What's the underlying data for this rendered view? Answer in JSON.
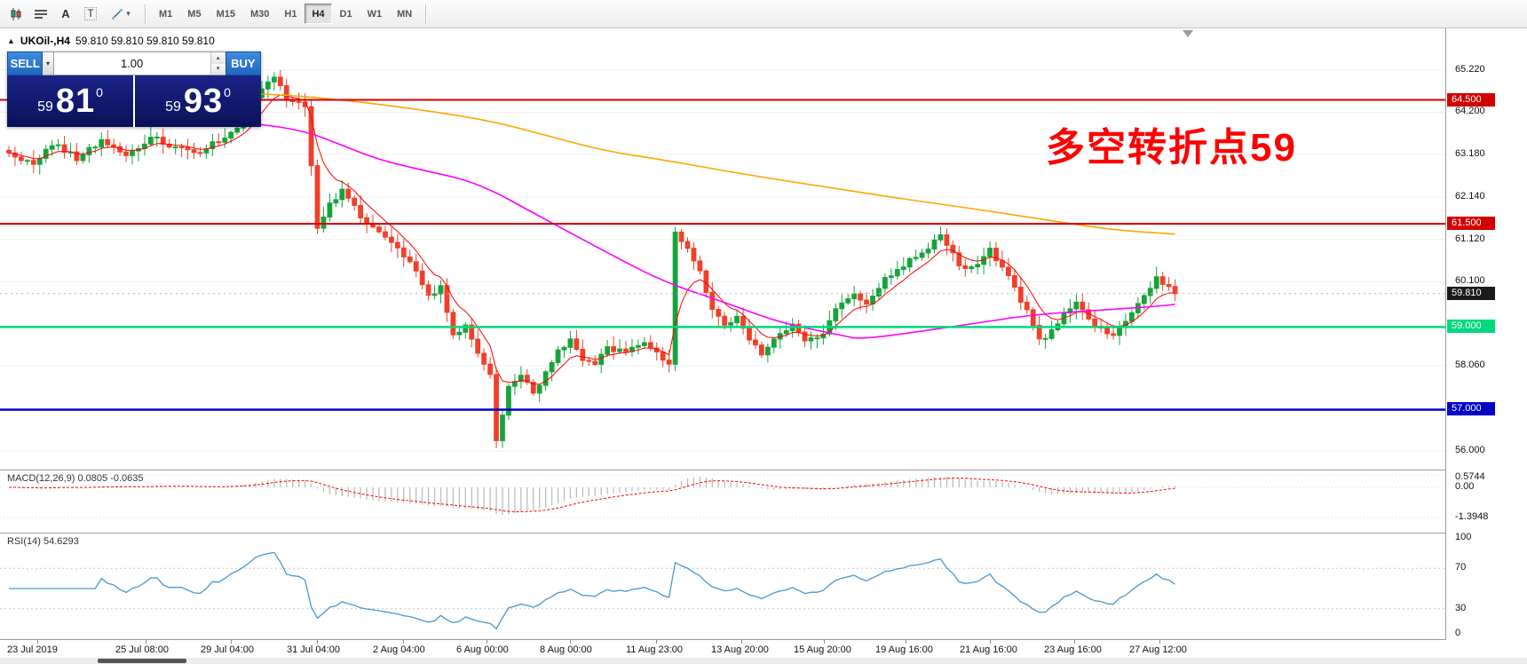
{
  "toolbar": {
    "tool_glyphs": {
      "a": "A",
      "t": "T",
      "dd": "▾"
    },
    "timeframes": [
      "M1",
      "M5",
      "M15",
      "M30",
      "H1",
      "H4",
      "D1",
      "W1",
      "MN"
    ],
    "active_timeframe": "H4"
  },
  "chart": {
    "collapse_marker": "▲",
    "title": "UKOil-,H4",
    "ohlc": "59.810 59.810 59.810 59.810",
    "annotation": {
      "text": "多空转折点59",
      "color": "#ff0000"
    },
    "price_axis": [
      {
        "text": "65.220",
        "value": 65.22
      },
      {
        "text": "64.200",
        "value": 64.2
      },
      {
        "text": "63.180",
        "value": 63.18
      },
      {
        "text": "62.140",
        "value": 62.14
      },
      {
        "text": "61.120",
        "value": 61.12
      },
      {
        "text": "60.100",
        "value": 60.1
      },
      {
        "text": "58.060",
        "value": 58.06
      },
      {
        "text": "56.000",
        "value": 56.0
      }
    ],
    "badges": [
      {
        "text": "64.500",
        "value": 64.5,
        "bg": "#d40000",
        "fg": "#ffffff"
      },
      {
        "text": "61.500",
        "value": 61.5,
        "bg": "#d40000",
        "fg": "#ffffff"
      },
      {
        "text": "59.810",
        "value": 59.81,
        "bg": "#1a1a1a",
        "fg": "#ffffff"
      },
      {
        "text": "59.000",
        "value": 59.0,
        "bg": "#00d97e",
        "fg": "#ffffff"
      },
      {
        "text": "57.000",
        "value": 57.0,
        "bg": "#0000c8",
        "fg": "#ffffff"
      }
    ],
    "macd_axis": [
      {
        "text": "0.5744",
        "value": 0.5744
      },
      {
        "text": "0.00",
        "value": 0
      },
      {
        "text": "-1.3948",
        "value": -1.3948
      }
    ],
    "rsi_axis": [
      {
        "text": "100",
        "value": 100
      },
      {
        "text": "70",
        "value": 70
      },
      {
        "text": "30",
        "value": 30
      },
      {
        "text": "0",
        "value": 0
      }
    ]
  },
  "trade_panel": {
    "sell_label": "SELL",
    "buy_label": "BUY",
    "volume": "1.00",
    "bid_small": "59",
    "bid_big": "81",
    "bid_sup": "0",
    "ask_small": "59",
    "ask_big": "93",
    "ask_sup": "0"
  },
  "macd": {
    "label": "MACD(12,26,9) 0.0805 -0.0635"
  },
  "rsi": {
    "label": "RSI(14) 54.6293"
  },
  "time_axis": [
    "23 Jul 2019",
    "25 Jul 08:00",
    "29 Jul 04:00",
    "31 Jul 04:00",
    "2 Aug 04:00",
    "6 Aug 00:00",
    "8 Aug 00:00",
    "11 Aug 23:00",
    "13 Aug 20:00",
    "15 Aug 20:00",
    "19 Aug 16:00",
    "21 Aug 16:00",
    "23 Aug 16:00",
    "27 Aug 12:00"
  ],
  "colors": {
    "bull": "#17a33c",
    "bear": "#f0402a",
    "ma_fast": "#ff0000",
    "ma_mid": "#ff00ff",
    "ma_slow": "#ffa500",
    "macd_hist": "#bdbdbd",
    "macd_signal": "#ff0000",
    "rsi_line": "#4a96d2",
    "level_red": "#d40000",
    "level_green": "#00d97e",
    "level_blue": "#0000c8"
  },
  "chart_data": {
    "type": "candlestick",
    "symbol": "UKOil-",
    "timeframe": "H4",
    "visible_range": {
      "price_min": 56.0,
      "price_max": 65.22
    },
    "n_candles": 190,
    "close_waypoints": [
      [
        0,
        63.2
      ],
      [
        4,
        62.95
      ],
      [
        7,
        63.45
      ],
      [
        11,
        63.1
      ],
      [
        15,
        63.5
      ],
      [
        19,
        63.15
      ],
      [
        23,
        63.6
      ],
      [
        27,
        63.35
      ],
      [
        31,
        63.25
      ],
      [
        35,
        63.6
      ],
      [
        38,
        63.9
      ],
      [
        41,
        64.8
      ],
      [
        43,
        65.05
      ],
      [
        45,
        64.55
      ],
      [
        48,
        64.35
      ],
      [
        50,
        61.45
      ],
      [
        52,
        61.95
      ],
      [
        54,
        62.3
      ],
      [
        57,
        61.7
      ],
      [
        60,
        61.3
      ],
      [
        63,
        60.85
      ],
      [
        66,
        60.35
      ],
      [
        68,
        59.7
      ],
      [
        70,
        59.95
      ],
      [
        72,
        58.8
      ],
      [
        74,
        59.0
      ],
      [
        76,
        58.35
      ],
      [
        78,
        57.9
      ],
      [
        79,
        56.25
      ],
      [
        81,
        57.5
      ],
      [
        83,
        57.85
      ],
      [
        85,
        57.35
      ],
      [
        87,
        57.95
      ],
      [
        89,
        58.45
      ],
      [
        91,
        58.65
      ],
      [
        93,
        58.15
      ],
      [
        95,
        58.05
      ],
      [
        97,
        58.5
      ],
      [
        100,
        58.4
      ],
      [
        103,
        58.65
      ],
      [
        105,
        58.35
      ],
      [
        107,
        58.1
      ],
      [
        108,
        61.3
      ],
      [
        110,
        60.85
      ],
      [
        112,
        60.3
      ],
      [
        114,
        59.45
      ],
      [
        116,
        59.05
      ],
      [
        118,
        59.25
      ],
      [
        120,
        58.65
      ],
      [
        122,
        58.35
      ],
      [
        124,
        58.7
      ],
      [
        127,
        59.05
      ],
      [
        129,
        58.65
      ],
      [
        132,
        58.85
      ],
      [
        134,
        59.4
      ],
      [
        137,
        59.8
      ],
      [
        139,
        59.6
      ],
      [
        141,
        60.0
      ],
      [
        143,
        60.3
      ],
      [
        146,
        60.6
      ],
      [
        149,
        60.95
      ],
      [
        151,
        61.2
      ],
      [
        153,
        60.75
      ],
      [
        155,
        60.35
      ],
      [
        157,
        60.55
      ],
      [
        159,
        60.9
      ],
      [
        161,
        60.45
      ],
      [
        163,
        59.95
      ],
      [
        165,
        59.35
      ],
      [
        167,
        58.65
      ],
      [
        169,
        58.9
      ],
      [
        171,
        59.3
      ],
      [
        173,
        59.6
      ],
      [
        175,
        59.2
      ],
      [
        177,
        58.95
      ],
      [
        179,
        58.8
      ],
      [
        181,
        59.15
      ],
      [
        183,
        59.5
      ],
      [
        185,
        59.95
      ],
      [
        186,
        60.2
      ],
      [
        188,
        59.95
      ],
      [
        189,
        59.81
      ]
    ],
    "pinned_indices": [
      43,
      79,
      107,
      108,
      189
    ],
    "ma_red_period": 7,
    "ma_orange_waypoints": [
      [
        0,
        64.8
      ],
      [
        40,
        64.68
      ],
      [
        54,
        64.5
      ],
      [
        65,
        64.3
      ],
      [
        78,
        64.0
      ],
      [
        88,
        63.6
      ],
      [
        97,
        63.25
      ],
      [
        106,
        63.05
      ],
      [
        119,
        62.7
      ],
      [
        132,
        62.4
      ],
      [
        145,
        62.1
      ],
      [
        157,
        61.85
      ],
      [
        170,
        61.55
      ],
      [
        179,
        61.35
      ],
      [
        189,
        61.25
      ]
    ],
    "ma_magenta_waypoints": [
      [
        0,
        64.6
      ],
      [
        39,
        63.95
      ],
      [
        48,
        63.75
      ],
      [
        54,
        63.4
      ],
      [
        60,
        63.05
      ],
      [
        67,
        62.8
      ],
      [
        76,
        62.5
      ],
      [
        87,
        61.6
      ],
      [
        97,
        60.8
      ],
      [
        106,
        60.1
      ],
      [
        116,
        59.6
      ],
      [
        125,
        59.1
      ],
      [
        135,
        58.8
      ],
      [
        138,
        58.7
      ],
      [
        148,
        58.9
      ],
      [
        157,
        59.1
      ],
      [
        166,
        59.3
      ],
      [
        176,
        59.4
      ],
      [
        186,
        59.5
      ],
      [
        189,
        59.55
      ]
    ],
    "levels": [
      {
        "price": 64.5,
        "color": "#d40000",
        "width": 2
      },
      {
        "price": 61.5,
        "color": "#d40000",
        "width": 2
      },
      {
        "price": 59.0,
        "color": "#00d97e",
        "width": 2.5
      },
      {
        "price": 57.0,
        "color": "#0000c8",
        "width": 2.5
      }
    ],
    "current_price": {
      "value": 59.81,
      "label": "59.810"
    },
    "bid": 59.81,
    "ask": 59.93,
    "indicators": [
      {
        "name": "MACD",
        "params": "12,26,9",
        "main": 0.0805,
        "signal": -0.0635,
        "scale": [
          0.5744,
          0.0,
          -1.3948
        ]
      },
      {
        "name": "RSI",
        "params": "14",
        "value": 54.6293,
        "levels": [
          70,
          30
        ],
        "scale": [
          100,
          70,
          30,
          0
        ]
      }
    ]
  }
}
